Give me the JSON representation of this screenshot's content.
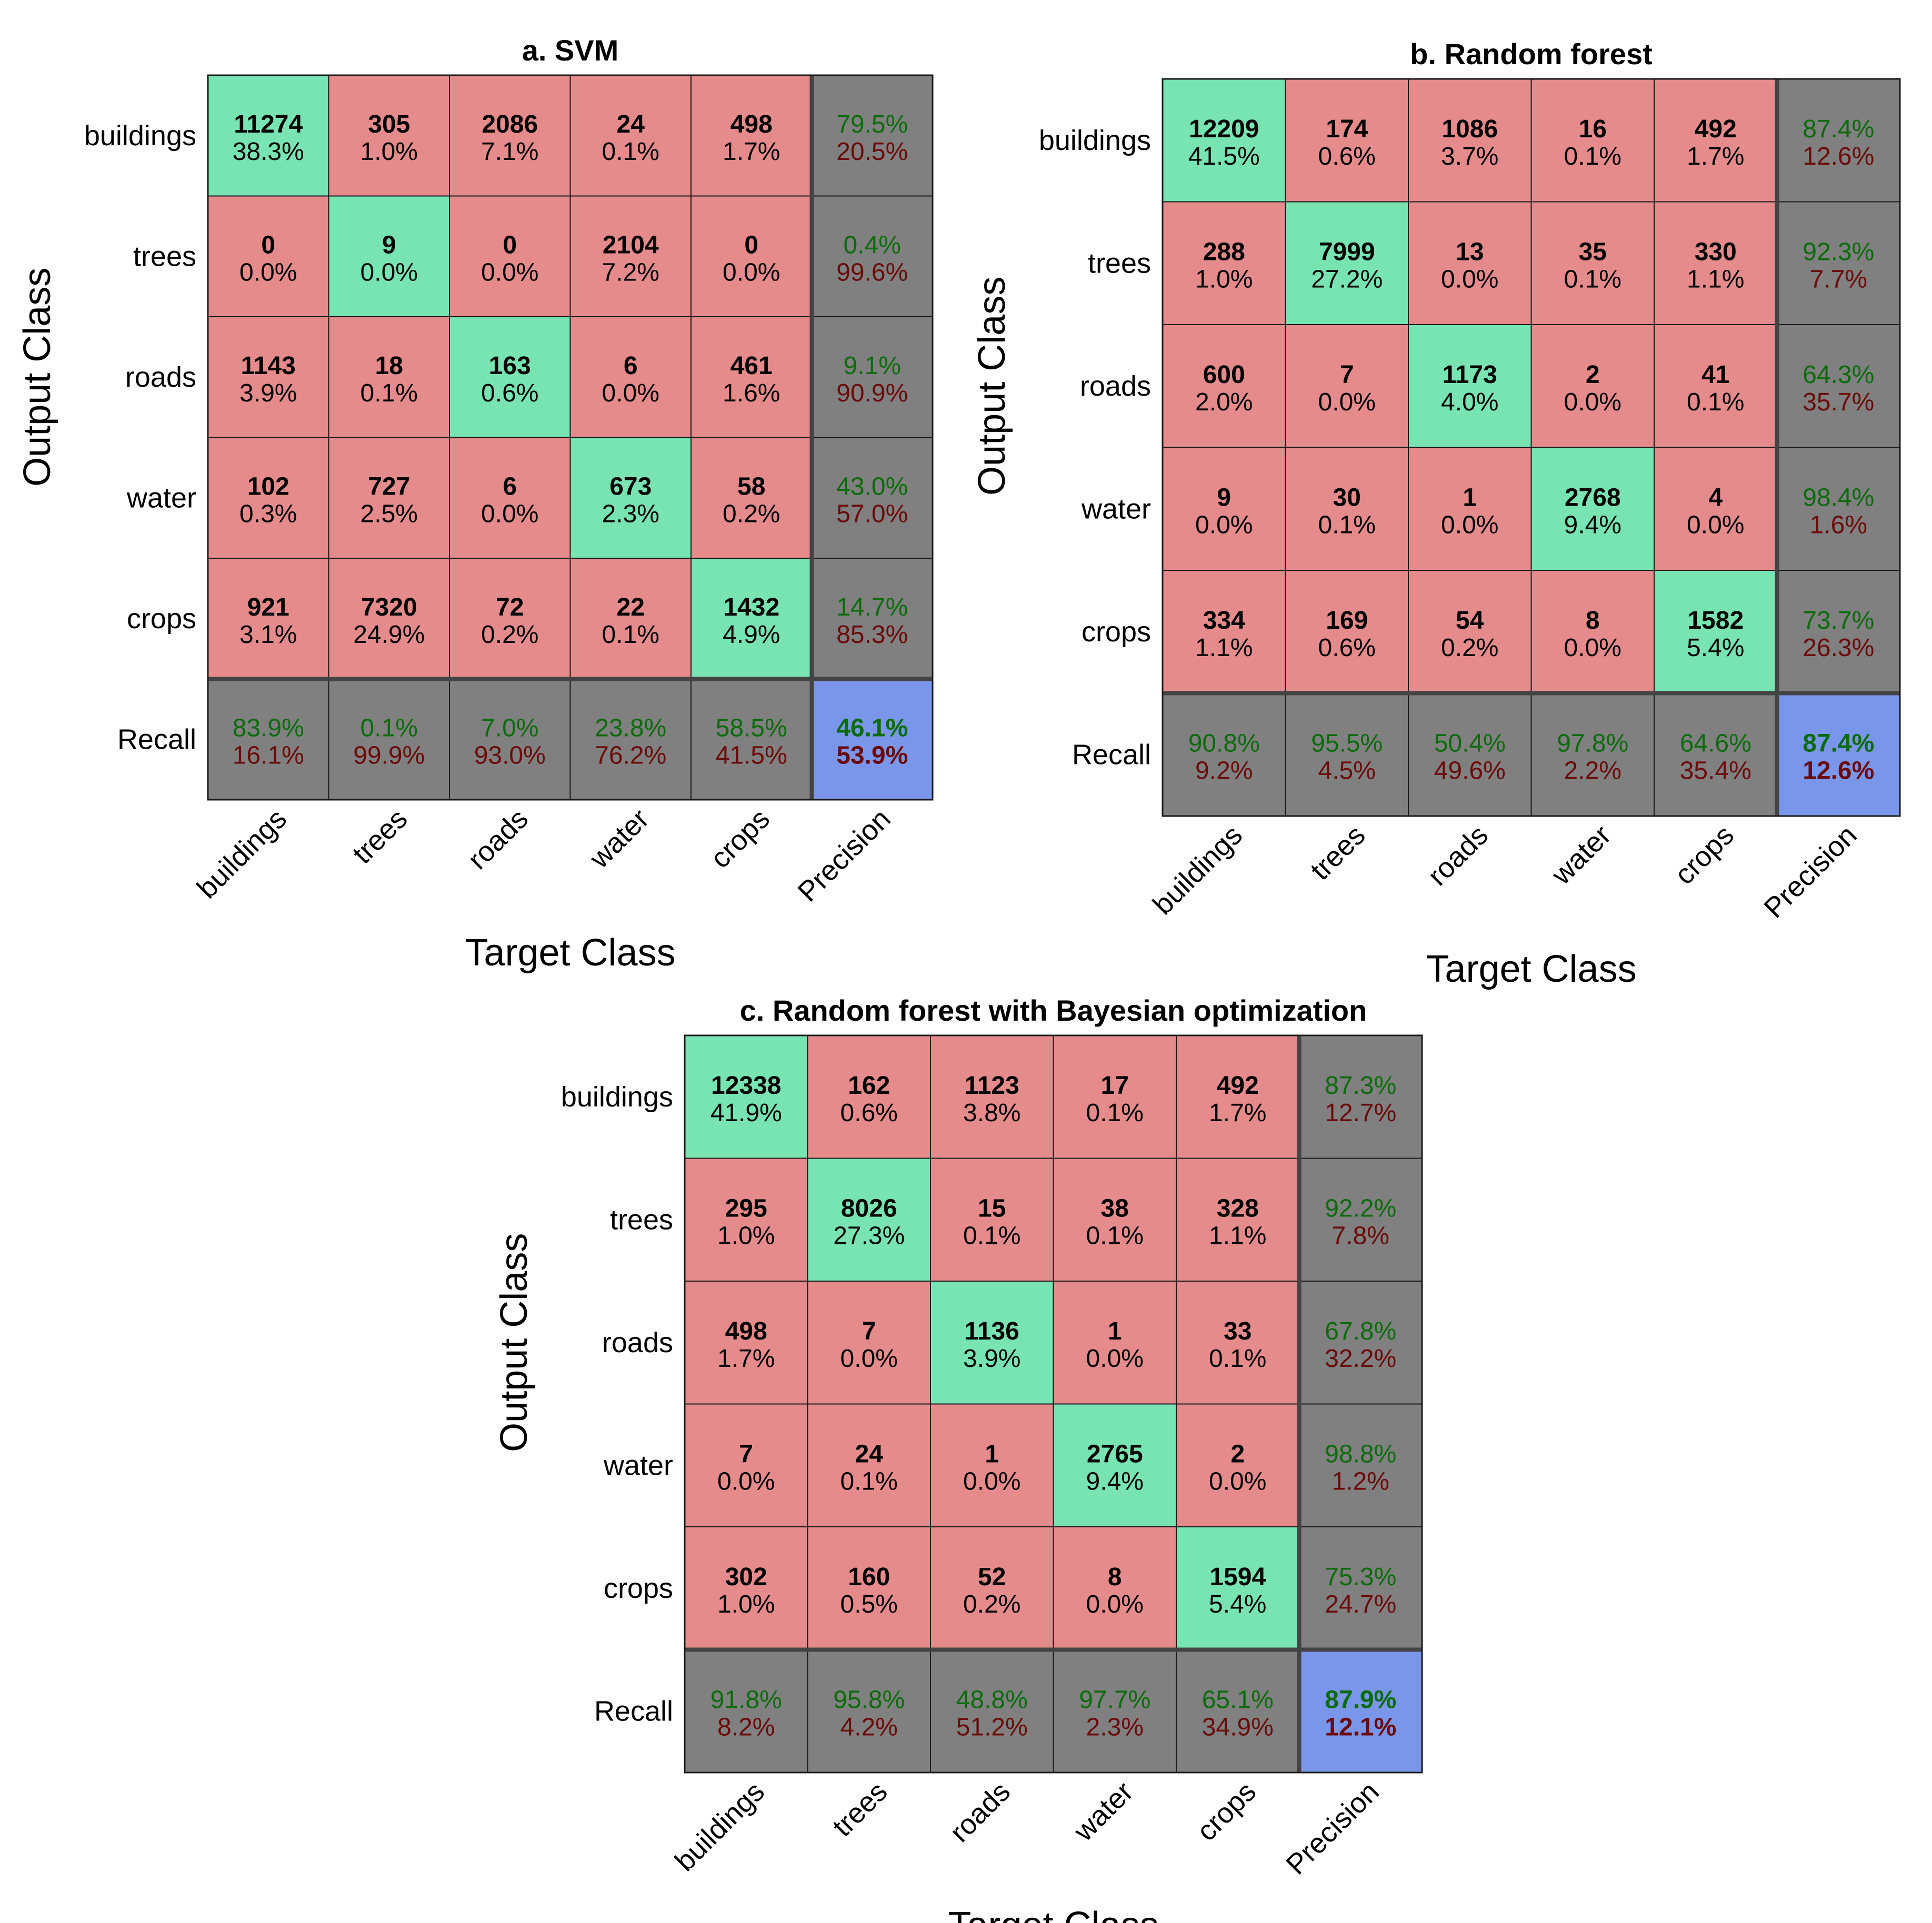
{
  "chart_data": [
    {
      "type": "heatmap",
      "title": "a.  SVM",
      "xlabel": "Target Class",
      "ylabel": "Output Class",
      "classes": [
        "buildings",
        "trees",
        "roads",
        "water",
        "crops"
      ],
      "summary_row_label": "Recall",
      "summary_col_label": "Precision",
      "cells": [
        [
          {
            "count": "11274",
            "pct": "38.3%"
          },
          {
            "count": "305",
            "pct": "1.0%"
          },
          {
            "count": "2086",
            "pct": "7.1%"
          },
          {
            "count": "24",
            "pct": "0.1%"
          },
          {
            "count": "498",
            "pct": "1.7%"
          }
        ],
        [
          {
            "count": "0",
            "pct": "0.0%"
          },
          {
            "count": "9",
            "pct": "0.0%"
          },
          {
            "count": "0",
            "pct": "0.0%"
          },
          {
            "count": "2104",
            "pct": "7.2%"
          },
          {
            "count": "0",
            "pct": "0.0%"
          }
        ],
        [
          {
            "count": "1143",
            "pct": "3.9%"
          },
          {
            "count": "18",
            "pct": "0.1%"
          },
          {
            "count": "163",
            "pct": "0.6%"
          },
          {
            "count": "6",
            "pct": "0.0%"
          },
          {
            "count": "461",
            "pct": "1.6%"
          }
        ],
        [
          {
            "count": "102",
            "pct": "0.3%"
          },
          {
            "count": "727",
            "pct": "2.5%"
          },
          {
            "count": "6",
            "pct": "0.0%"
          },
          {
            "count": "673",
            "pct": "2.3%"
          },
          {
            "count": "58",
            "pct": "0.2%"
          }
        ],
        [
          {
            "count": "921",
            "pct": "3.1%"
          },
          {
            "count": "7320",
            "pct": "24.9%"
          },
          {
            "count": "72",
            "pct": "0.2%"
          },
          {
            "count": "22",
            "pct": "0.1%"
          },
          {
            "count": "1432",
            "pct": "4.9%"
          }
        ]
      ],
      "precision": [
        {
          "good": "79.5%",
          "bad": "20.5%"
        },
        {
          "good": "0.4%",
          "bad": "99.6%"
        },
        {
          "good": "9.1%",
          "bad": "90.9%"
        },
        {
          "good": "43.0%",
          "bad": "57.0%"
        },
        {
          "good": "14.7%",
          "bad": "85.3%"
        }
      ],
      "recall": [
        {
          "good": "83.9%",
          "bad": "16.1%"
        },
        {
          "good": "0.1%",
          "bad": "99.9%"
        },
        {
          "good": "7.0%",
          "bad": "93.0%"
        },
        {
          "good": "23.8%",
          "bad": "76.2%"
        },
        {
          "good": "58.5%",
          "bad": "41.5%"
        }
      ],
      "overall": {
        "good": "46.1%",
        "bad": "53.9%"
      }
    },
    {
      "type": "heatmap",
      "title": "b. Random forest",
      "xlabel": "Target Class",
      "ylabel": "Output Class",
      "classes": [
        "buildings",
        "trees",
        "roads",
        "water",
        "crops"
      ],
      "summary_row_label": "Recall",
      "summary_col_label": "Precision",
      "cells": [
        [
          {
            "count": "12209",
            "pct": "41.5%"
          },
          {
            "count": "174",
            "pct": "0.6%"
          },
          {
            "count": "1086",
            "pct": "3.7%"
          },
          {
            "count": "16",
            "pct": "0.1%"
          },
          {
            "count": "492",
            "pct": "1.7%"
          }
        ],
        [
          {
            "count": "288",
            "pct": "1.0%"
          },
          {
            "count": "7999",
            "pct": "27.2%"
          },
          {
            "count": "13",
            "pct": "0.0%"
          },
          {
            "count": "35",
            "pct": "0.1%"
          },
          {
            "count": "330",
            "pct": "1.1%"
          }
        ],
        [
          {
            "count": "600",
            "pct": "2.0%"
          },
          {
            "count": "7",
            "pct": "0.0%"
          },
          {
            "count": "1173",
            "pct": "4.0%"
          },
          {
            "count": "2",
            "pct": "0.0%"
          },
          {
            "count": "41",
            "pct": "0.1%"
          }
        ],
        [
          {
            "count": "9",
            "pct": "0.0%"
          },
          {
            "count": "30",
            "pct": "0.1%"
          },
          {
            "count": "1",
            "pct": "0.0%"
          },
          {
            "count": "2768",
            "pct": "9.4%"
          },
          {
            "count": "4",
            "pct": "0.0%"
          }
        ],
        [
          {
            "count": "334",
            "pct": "1.1%"
          },
          {
            "count": "169",
            "pct": "0.6%"
          },
          {
            "count": "54",
            "pct": "0.2%"
          },
          {
            "count": "8",
            "pct": "0.0%"
          },
          {
            "count": "1582",
            "pct": "5.4%"
          }
        ]
      ],
      "precision": [
        {
          "good": "87.4%",
          "bad": "12.6%"
        },
        {
          "good": "92.3%",
          "bad": "7.7%"
        },
        {
          "good": "64.3%",
          "bad": "35.7%"
        },
        {
          "good": "98.4%",
          "bad": "1.6%"
        },
        {
          "good": "73.7%",
          "bad": "26.3%"
        }
      ],
      "recall": [
        {
          "good": "90.8%",
          "bad": "9.2%"
        },
        {
          "good": "95.5%",
          "bad": "4.5%"
        },
        {
          "good": "50.4%",
          "bad": "49.6%"
        },
        {
          "good": "97.8%",
          "bad": "2.2%"
        },
        {
          "good": "64.6%",
          "bad": "35.4%"
        }
      ],
      "overall": {
        "good": "87.4%",
        "bad": "12.6%"
      }
    },
    {
      "type": "heatmap",
      "title": "c. Random forest with Bayesian optimization",
      "xlabel": "Target Class",
      "ylabel": "Output Class",
      "classes": [
        "buildings",
        "trees",
        "roads",
        "water",
        "crops"
      ],
      "summary_row_label": "Recall",
      "summary_col_label": "Precision",
      "cells": [
        [
          {
            "count": "12338",
            "pct": "41.9%"
          },
          {
            "count": "162",
            "pct": "0.6%"
          },
          {
            "count": "1123",
            "pct": "3.8%"
          },
          {
            "count": "17",
            "pct": "0.1%"
          },
          {
            "count": "492",
            "pct": "1.7%"
          }
        ],
        [
          {
            "count": "295",
            "pct": "1.0%"
          },
          {
            "count": "8026",
            "pct": "27.3%"
          },
          {
            "count": "15",
            "pct": "0.1%"
          },
          {
            "count": "38",
            "pct": "0.1%"
          },
          {
            "count": "328",
            "pct": "1.1%"
          }
        ],
        [
          {
            "count": "498",
            "pct": "1.7%"
          },
          {
            "count": "7",
            "pct": "0.0%"
          },
          {
            "count": "1136",
            "pct": "3.9%"
          },
          {
            "count": "1",
            "pct": "0.0%"
          },
          {
            "count": "33",
            "pct": "0.1%"
          }
        ],
        [
          {
            "count": "7",
            "pct": "0.0%"
          },
          {
            "count": "24",
            "pct": "0.1%"
          },
          {
            "count": "1",
            "pct": "0.0%"
          },
          {
            "count": "2765",
            "pct": "9.4%"
          },
          {
            "count": "2",
            "pct": "0.0%"
          }
        ],
        [
          {
            "count": "302",
            "pct": "1.0%"
          },
          {
            "count": "160",
            "pct": "0.5%"
          },
          {
            "count": "52",
            "pct": "0.2%"
          },
          {
            "count": "8",
            "pct": "0.0%"
          },
          {
            "count": "1594",
            "pct": "5.4%"
          }
        ]
      ],
      "precision": [
        {
          "good": "87.3%",
          "bad": "12.7%"
        },
        {
          "good": "92.2%",
          "bad": "7.8%"
        },
        {
          "good": "67.8%",
          "bad": "32.2%"
        },
        {
          "good": "98.8%",
          "bad": "1.2%"
        },
        {
          "good": "75.3%",
          "bad": "24.7%"
        }
      ],
      "recall": [
        {
          "good": "91.8%",
          "bad": "8.2%"
        },
        {
          "good": "95.8%",
          "bad": "4.2%"
        },
        {
          "good": "48.8%",
          "bad": "51.2%"
        },
        {
          "good": "97.7%",
          "bad": "2.3%"
        },
        {
          "good": "65.1%",
          "bad": "34.9%"
        }
      ],
      "overall": {
        "good": "87.9%",
        "bad": "12.1%"
      }
    }
  ],
  "colors": {
    "diagonal": "#77e4b2",
    "off_diagonal": "#e58b8b",
    "summary": "#808080",
    "overall": "#7a96ea",
    "grid": "#1a1a1a",
    "separator": "#444444",
    "good_text": "#0b6b0b",
    "bad_text": "#6b0a0a"
  }
}
